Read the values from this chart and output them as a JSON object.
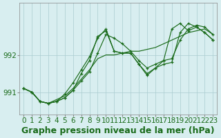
{
  "title": "Graphe pression niveau de la mer (hPa)",
  "bg_color": "#d8eef0",
  "grid_color": "#aaccd0",
  "line_color": "#1a6b1a",
  "marker_color": "#1a6b1a",
  "x_ticks": [
    0,
    1,
    2,
    3,
    4,
    5,
    6,
    7,
    8,
    9,
    10,
    11,
    12,
    13,
    14,
    15,
    16,
    17,
    18,
    19,
    20,
    21,
    22,
    23
  ],
  "yticks": [
    991,
    992
  ],
  "ylim": [
    990.4,
    993.4
  ],
  "xlim": [
    -0.5,
    23.5
  ],
  "series": [
    [
      991.1,
      991.0,
      990.75,
      990.7,
      990.75,
      990.85,
      991.05,
      991.3,
      991.55,
      992.05,
      992.55,
      992.45,
      992.3,
      992.1,
      991.85,
      991.65,
      991.75,
      991.85,
      991.9,
      992.4,
      992.7,
      992.8,
      992.75,
      992.55
    ],
    [
      991.1,
      991.0,
      990.75,
      990.7,
      990.75,
      990.85,
      991.05,
      991.5,
      991.85,
      992.5,
      992.65,
      992.1,
      992.05,
      992.05,
      991.75,
      991.45,
      991.65,
      991.85,
      992.7,
      992.85,
      992.65,
      992.75,
      992.6,
      992.4
    ],
    [
      991.1,
      991.0,
      990.75,
      990.7,
      990.75,
      990.95,
      991.25,
      991.6,
      991.95,
      992.45,
      992.7,
      992.1,
      992.05,
      992.05,
      991.75,
      991.5,
      991.65,
      991.75,
      991.8,
      992.6,
      992.85,
      992.75,
      992.6,
      992.4
    ],
    [
      991.1,
      991.0,
      990.75,
      990.7,
      990.8,
      990.9,
      991.1,
      991.35,
      991.6,
      991.9,
      992.0,
      992.0,
      992.05,
      992.1,
      992.1,
      992.15,
      992.2,
      992.3,
      992.4,
      992.5,
      992.6,
      992.65,
      992.7,
      992.55
    ]
  ],
  "title_fontsize": 9,
  "tick_fontsize": 7.5
}
